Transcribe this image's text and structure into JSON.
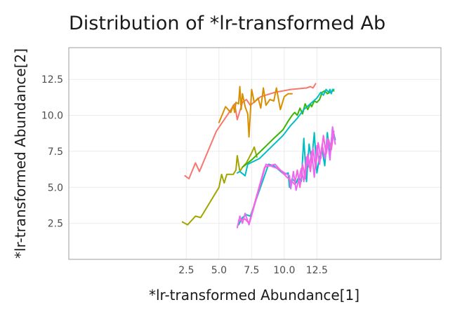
{
  "chart_data": {
    "type": "line",
    "title": "Distribution of *lr-transformed Ab",
    "xlabel": "*lr-transformed Abundance[1]",
    "ylabel": "*lr-transformed Abundance[2]",
    "xlim": [
      -6.5,
      22.0
    ],
    "ylim": [
      0.0,
      14.7
    ],
    "x_ticks": [
      2.5,
      5.0,
      7.5,
      10.0,
      12.5
    ],
    "x_tick_labels": [
      "2.5",
      "5.0",
      "7.5",
      "10.0",
      "12.5"
    ],
    "y_ticks": [
      2.5,
      5.0,
      7.5,
      10.0,
      12.5
    ],
    "y_tick_labels": [
      "2.5",
      "5.0",
      "7.5",
      "10.0",
      "12.5"
    ],
    "grid": true,
    "legend": "none",
    "series": [
      {
        "color": "#F8766D",
        "points": [
          [
            2.4,
            5.8
          ],
          [
            2.7,
            5.6
          ],
          [
            3.2,
            6.7
          ],
          [
            3.5,
            6.1
          ],
          [
            4.8,
            8.9
          ],
          [
            5.7,
            10.1
          ],
          [
            6.2,
            10.8
          ],
          [
            6.4,
            9.7
          ],
          [
            6.8,
            10.9
          ],
          [
            7.1,
            11.1
          ],
          [
            7.4,
            10.7
          ],
          [
            8.2,
            11.3
          ],
          [
            9.3,
            11.6
          ],
          [
            10.5,
            11.8
          ],
          [
            11.7,
            11.9
          ],
          [
            12.0,
            12.0
          ],
          [
            12.2,
            11.9
          ],
          [
            12.4,
            12.2
          ]
        ]
      },
      {
        "color": "#D89000",
        "points": [
          [
            5.0,
            9.5
          ],
          [
            5.5,
            10.6
          ],
          [
            5.9,
            10.2
          ],
          [
            6.1,
            10.7
          ],
          [
            6.2,
            10.2
          ],
          [
            6.3,
            10.9
          ],
          [
            6.5,
            10.8
          ],
          [
            6.6,
            12.0
          ],
          [
            6.7,
            10.4
          ],
          [
            6.8,
            11.5
          ],
          [
            7.0,
            10.6
          ],
          [
            7.2,
            10.1
          ],
          [
            7.3,
            8.5
          ],
          [
            7.5,
            11.8
          ],
          [
            7.7,
            10.9
          ],
          [
            8.0,
            11.2
          ],
          [
            8.2,
            10.5
          ],
          [
            8.4,
            11.9
          ],
          [
            8.6,
            10.7
          ],
          [
            8.9,
            11.1
          ],
          [
            9.2,
            11.0
          ],
          [
            9.4,
            11.9
          ],
          [
            9.7,
            10.4
          ],
          [
            10.0,
            11.3
          ],
          [
            10.3,
            11.5
          ],
          [
            10.6,
            11.5
          ]
        ]
      },
      {
        "color": "#A3A500",
        "points": [
          [
            2.2,
            2.6
          ],
          [
            2.6,
            2.4
          ],
          [
            3.2,
            3.0
          ],
          [
            3.6,
            2.9
          ],
          [
            5.0,
            5.0
          ],
          [
            5.2,
            5.9
          ],
          [
            5.4,
            5.3
          ],
          [
            5.6,
            5.9
          ],
          [
            6.1,
            5.9
          ],
          [
            6.3,
            6.2
          ],
          [
            6.4,
            7.2
          ],
          [
            6.6,
            6.1
          ],
          [
            6.8,
            6.4
          ],
          [
            7.1,
            6.7
          ],
          [
            7.5,
            7.4
          ],
          [
            7.7,
            7.8
          ],
          [
            7.9,
            7.1
          ]
        ]
      },
      {
        "color": "#39B600",
        "points": [
          [
            6.8,
            6.4
          ],
          [
            7.5,
            6.9
          ],
          [
            8.3,
            7.6
          ],
          [
            9.2,
            8.4
          ],
          [
            9.9,
            9.0
          ],
          [
            10.3,
            9.6
          ],
          [
            10.6,
            10.0
          ],
          [
            10.8,
            10.2
          ],
          [
            11.0,
            10.0
          ],
          [
            11.2,
            10.5
          ],
          [
            11.4,
            10.1
          ],
          [
            11.6,
            10.8
          ],
          [
            11.8,
            10.4
          ],
          [
            12.0,
            10.8
          ],
          [
            12.1,
            10.6
          ],
          [
            12.3,
            11.0
          ],
          [
            12.5,
            10.9
          ],
          [
            12.7,
            11.1
          ],
          [
            12.9,
            11.6
          ],
          [
            13.1,
            11.7
          ],
          [
            13.3,
            11.5
          ],
          [
            13.5,
            11.6
          ],
          [
            13.7,
            11.7
          ],
          [
            13.8,
            11.7
          ]
        ]
      },
      {
        "color": "#00BFC4",
        "points": [
          [
            6.4,
            6.0
          ],
          [
            6.6,
            6.1
          ],
          [
            7.0,
            5.8
          ],
          [
            7.2,
            6.6
          ],
          [
            8.1,
            7.0
          ],
          [
            9.0,
            7.8
          ],
          [
            9.9,
            8.6
          ],
          [
            10.5,
            9.3
          ],
          [
            11.0,
            9.8
          ],
          [
            11.5,
            10.4
          ],
          [
            12.0,
            10.8
          ],
          [
            12.5,
            11.2
          ],
          [
            12.8,
            11.6
          ],
          [
            13.0,
            11.4
          ],
          [
            13.2,
            11.8
          ],
          [
            13.4,
            11.6
          ],
          [
            13.5,
            11.8
          ],
          [
            13.6,
            11.5
          ],
          [
            13.7,
            11.8
          ],
          [
            13.8,
            11.8
          ]
        ]
      },
      {
        "color": "#00BFC4",
        "points": [
          [
            6.5,
            2.4
          ],
          [
            6.8,
            2.9
          ],
          [
            7.1,
            3.1
          ],
          [
            7.4,
            3.0
          ],
          [
            8.8,
            6.6
          ],
          [
            9.2,
            6.5
          ],
          [
            10.0,
            5.9
          ],
          [
            10.3,
            6.0
          ],
          [
            10.4,
            5.0
          ],
          [
            10.6,
            5.6
          ],
          [
            10.9,
            5.3
          ],
          [
            11.1,
            5.7
          ],
          [
            11.3,
            5.4
          ],
          [
            11.5,
            8.4
          ],
          [
            11.7,
            5.4
          ],
          [
            11.9,
            8.0
          ],
          [
            12.1,
            6.8
          ],
          [
            12.3,
            8.8
          ],
          [
            12.5,
            6.0
          ],
          [
            12.7,
            7.1
          ],
          [
            12.9,
            7.6
          ],
          [
            13.1,
            6.5
          ],
          [
            13.3,
            8.8
          ],
          [
            13.5,
            7.2
          ],
          [
            13.7,
            9.1
          ],
          [
            13.9,
            8.3
          ]
        ]
      },
      {
        "color": "#E76BF3",
        "points": [
          [
            6.4,
            2.2
          ],
          [
            6.6,
            3.0
          ],
          [
            6.8,
            2.5
          ],
          [
            7.0,
            3.2
          ],
          [
            7.3,
            2.4
          ],
          [
            8.6,
            6.6
          ],
          [
            9.5,
            6.3
          ],
          [
            10.4,
            5.8
          ],
          [
            10.5,
            4.9
          ],
          [
            10.7,
            6.1
          ],
          [
            10.9,
            4.8
          ],
          [
            11.1,
            5.5
          ],
          [
            11.3,
            6.3
          ],
          [
            11.5,
            5.4
          ],
          [
            11.7,
            7.1
          ],
          [
            11.9,
            6.4
          ],
          [
            12.1,
            7.5
          ],
          [
            12.3,
            5.7
          ],
          [
            12.5,
            7.9
          ],
          [
            12.7,
            6.6
          ],
          [
            12.9,
            8.0
          ],
          [
            13.1,
            7.0
          ],
          [
            13.3,
            8.4
          ],
          [
            13.5,
            6.9
          ],
          [
            13.7,
            9.2
          ],
          [
            13.9,
            8.0
          ]
        ]
      },
      {
        "color": "#F564E3",
        "points": [
          [
            6.5,
            2.7
          ],
          [
            7.0,
            2.8
          ],
          [
            7.3,
            2.5
          ],
          [
            8.5,
            6.4
          ],
          [
            9.3,
            6.6
          ],
          [
            10.2,
            5.7
          ],
          [
            10.6,
            5.4
          ],
          [
            10.8,
            5.2
          ],
          [
            11.0,
            6.2
          ],
          [
            11.2,
            5.0
          ],
          [
            11.4,
            6.6
          ],
          [
            11.6,
            5.6
          ],
          [
            11.8,
            7.3
          ],
          [
            12.0,
            6.1
          ],
          [
            12.2,
            7.7
          ],
          [
            12.4,
            6.3
          ],
          [
            12.6,
            8.1
          ],
          [
            12.8,
            7.0
          ],
          [
            13.0,
            8.6
          ],
          [
            13.2,
            7.3
          ],
          [
            13.4,
            8.3
          ],
          [
            13.6,
            7.6
          ],
          [
            13.8,
            8.9
          ]
        ]
      }
    ]
  }
}
